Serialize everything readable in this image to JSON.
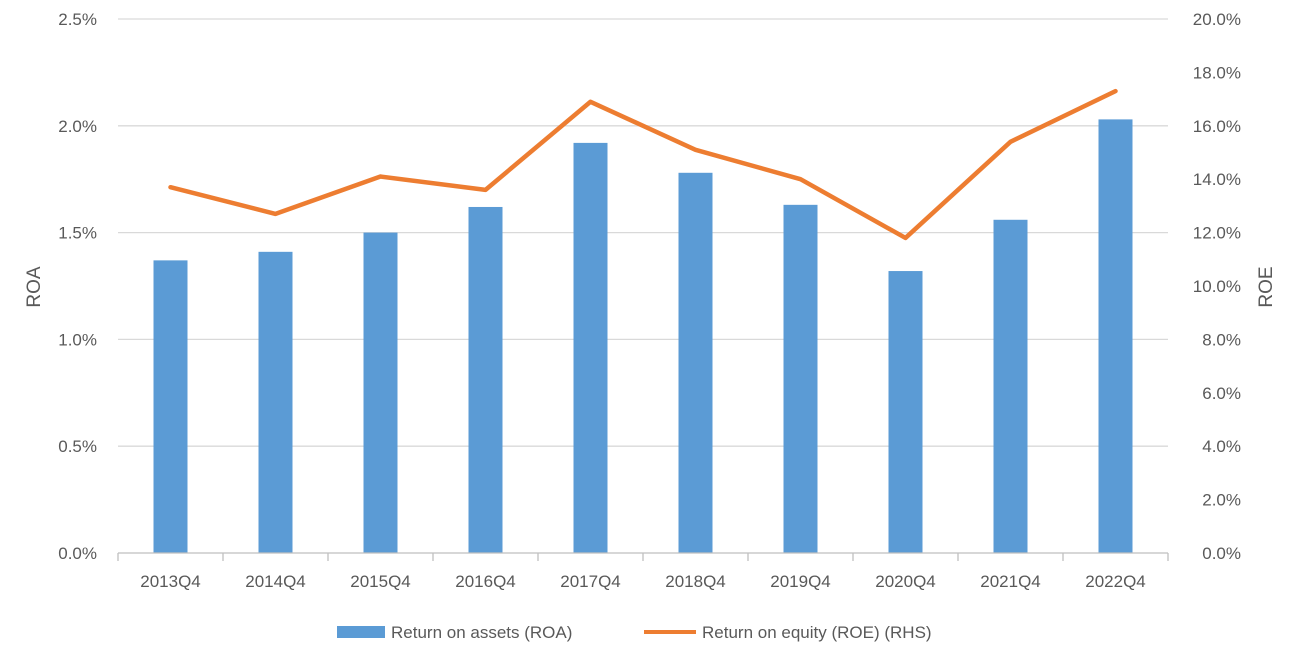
{
  "chart_data": {
    "type": "bar",
    "categories": [
      "2013Q4",
      "2014Q4",
      "2015Q4",
      "2016Q4",
      "2017Q4",
      "2018Q4",
      "2019Q4",
      "2020Q4",
      "2021Q4",
      "2022Q4"
    ],
    "series": [
      {
        "name": "Return on assets (ROA)",
        "type": "bar",
        "axis": "left",
        "color": "#5B9BD5",
        "values": [
          1.37,
          1.41,
          1.5,
          1.62,
          1.92,
          1.78,
          1.63,
          1.32,
          1.56,
          2.03
        ]
      },
      {
        "name": "Return on equity (ROE) (RHS)",
        "type": "line",
        "axis": "right",
        "color": "#ED7D31",
        "values": [
          13.7,
          12.7,
          14.1,
          13.6,
          16.9,
          15.1,
          14.0,
          11.8,
          15.4,
          17.3
        ]
      }
    ],
    "ylabel": "ROA",
    "y2label": "ROE",
    "ylim": [
      0,
      2.5
    ],
    "y2lim": [
      0,
      20
    ],
    "yticks": [
      "0.0%",
      "0.5%",
      "1.0%",
      "1.5%",
      "2.0%",
      "2.5%"
    ],
    "y2ticks": [
      "0.0%",
      "2.0%",
      "4.0%",
      "6.0%",
      "8.0%",
      "10.0%",
      "12.0%",
      "14.0%",
      "16.0%",
      "18.0%",
      "20.0%"
    ],
    "grid": true,
    "legend": "bottom-center"
  }
}
